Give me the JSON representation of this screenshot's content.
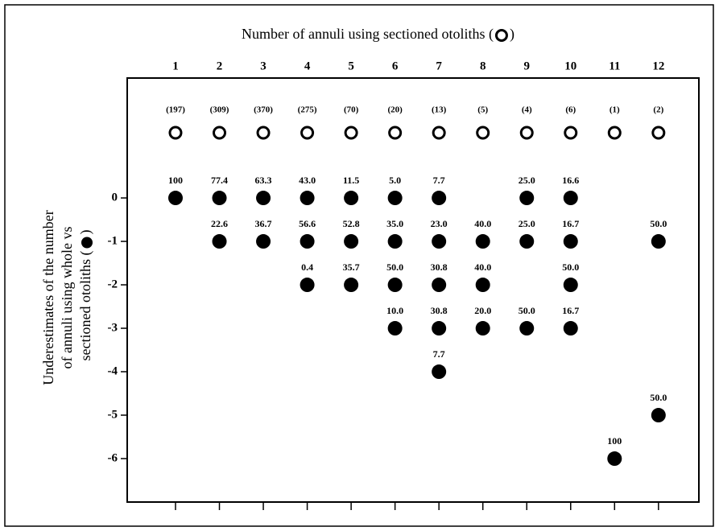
{
  "chart_data": {
    "type": "dotplot",
    "x_label": {
      "text": "Number of annuli using sectioned otoliths (",
      "close": ")"
    },
    "y_label": {
      "lines": [
        "Underestimates of the number",
        "of annuli using whole vs",
        "sectioned otoliths ("
      ],
      "close": ")"
    },
    "xticks": [
      1,
      2,
      3,
      4,
      5,
      6,
      7,
      8,
      9,
      10,
      11,
      12
    ],
    "xlim": [
      -0.1,
      12.92
    ],
    "yticks": [
      0,
      -1,
      -2,
      -3,
      -4,
      -5,
      -6
    ],
    "ylim": [
      -7,
      2.76
    ],
    "sample_sizes": {
      "values": [
        197,
        309,
        370,
        275,
        70,
        20,
        13,
        5,
        4,
        6,
        1,
        2
      ],
      "value_labels": [
        "(197)",
        "(309)",
        "(370)",
        "(275)",
        "(70)",
        "(20)",
        "(13)",
        "(5)",
        "(4)",
        "(6)",
        "(1)",
        "(2)"
      ]
    },
    "points": {
      "x": [
        1,
        2,
        2,
        3,
        3,
        4,
        4,
        4,
        5,
        5,
        5,
        6,
        6,
        6,
        6,
        7,
        7,
        7,
        7,
        7,
        8,
        8,
        8,
        9,
        9,
        9,
        10,
        10,
        10,
        10,
        11,
        12,
        12
      ],
      "y": [
        0,
        0,
        -1,
        0,
        -1,
        0,
        -1,
        -2,
        0,
        -1,
        -2,
        0,
        -1,
        -2,
        -3,
        0,
        -1,
        -2,
        -3,
        -4,
        -1,
        -2,
        -3,
        0,
        -1,
        -3,
        0,
        -1,
        -2,
        -3,
        -6,
        -1,
        -5
      ],
      "values": [
        100,
        77.4,
        22.6,
        63.3,
        36.7,
        43,
        56.6,
        0.4,
        11.5,
        52.8,
        35.7,
        5,
        35,
        50,
        10,
        7.7,
        23,
        30.8,
        30.8,
        7.7,
        40,
        40,
        20,
        25,
        25,
        50,
        16.6,
        16.7,
        50,
        16.7,
        100,
        50,
        50
      ],
      "value_labels": [
        "100",
        "77.4",
        "22.6",
        "63.3",
        "36.7",
        "43.0",
        "56.6",
        "0.4",
        "11.5",
        "52.8",
        "35.7",
        "5.0",
        "35.0",
        "50.0",
        "10.0",
        "7.7",
        "23.0",
        "30.8",
        "30.8",
        "7.7",
        "40.0",
        "40.0",
        "20.0",
        "25.0",
        "25.0",
        "50.0",
        "16.6",
        "16.7",
        "50.0",
        "16.7",
        "100",
        "50.0",
        "50.0"
      ]
    }
  }
}
